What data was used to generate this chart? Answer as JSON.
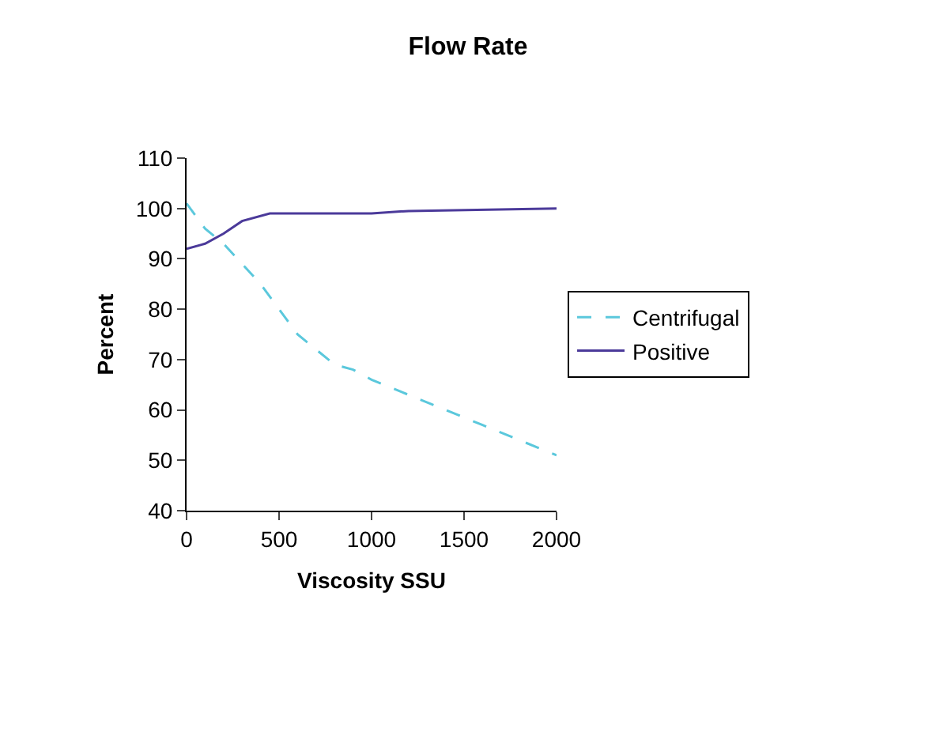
{
  "chart_data": {
    "type": "line",
    "title": "Flow Rate",
    "xlabel": "Viscosity SSU",
    "ylabel": "Percent",
    "xlim": [
      0,
      2000
    ],
    "xticks": [
      0,
      500,
      1000,
      1500,
      2000
    ],
    "ylim": [
      40,
      110
    ],
    "yticks": [
      40,
      50,
      60,
      70,
      80,
      90,
      100,
      110
    ],
    "grid": false,
    "legend": "right",
    "marker": "none",
    "series": [
      {
        "name": "Centrifugal",
        "color": "#5bc8dc",
        "line_style": "dashed",
        "x": [
          0,
          100,
          200,
          300,
          400,
          500,
          600,
          700,
          800,
          900,
          1000,
          1200,
          1400,
          1600,
          1800,
          2000
        ],
        "values": [
          101,
          96,
          93,
          89,
          85,
          80,
          75,
          72,
          69,
          68,
          66,
          63,
          60,
          57,
          54,
          51
        ]
      },
      {
        "name": "Positive",
        "color": "#4b3a9a",
        "line_style": "solid",
        "x": [
          0,
          100,
          200,
          300,
          450,
          1000,
          1200,
          2000
        ],
        "values": [
          92,
          93,
          95,
          97.5,
          99,
          99,
          99.5,
          100
        ]
      }
    ]
  }
}
